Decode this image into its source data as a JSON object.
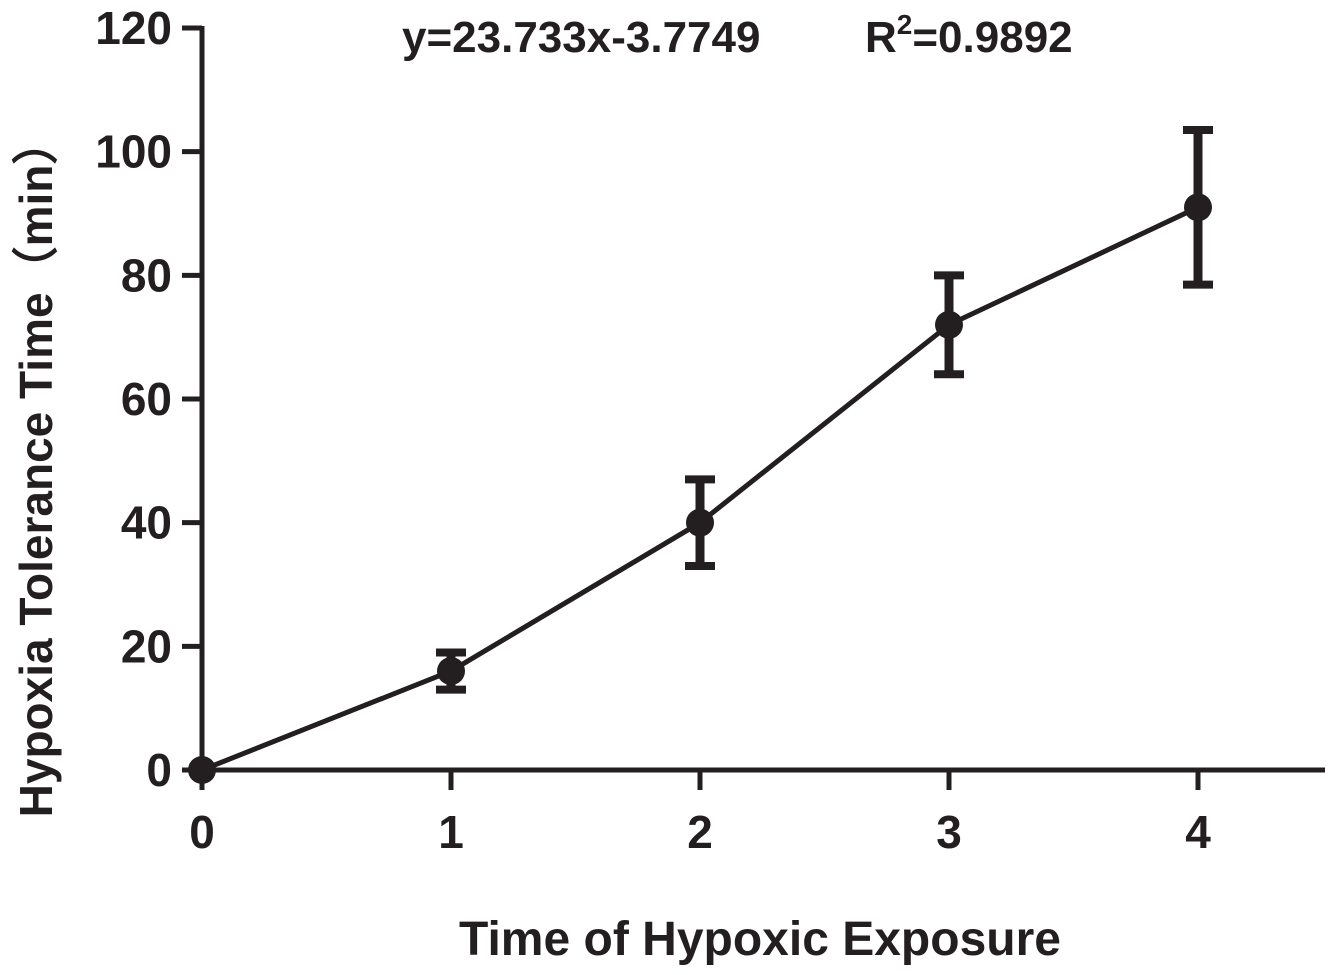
{
  "chart_data": {
    "type": "line",
    "annotation": {
      "equation": "y=23.733x-3.7749",
      "r_prefix": "R",
      "r_superscript": "2",
      "r_value": "=0.9892"
    },
    "xlabel": "Time of Hypoxic Exposure",
    "ylabel": "Hypoxia Tolerance Time（min）",
    "xlim": [
      0,
      4.5
    ],
    "ylim": [
      0,
      120
    ],
    "x_ticks": [
      0,
      1,
      2,
      3,
      4
    ],
    "y_ticks": [
      0,
      20,
      40,
      60,
      80,
      100,
      120
    ],
    "grid": false,
    "series": [
      {
        "x": [
          0,
          1,
          2,
          3,
          4
        ],
        "y": [
          0,
          16,
          40,
          72,
          91
        ],
        "error": [
          0,
          3,
          7,
          8,
          12.5
        ],
        "color": "#231f20"
      }
    ]
  }
}
